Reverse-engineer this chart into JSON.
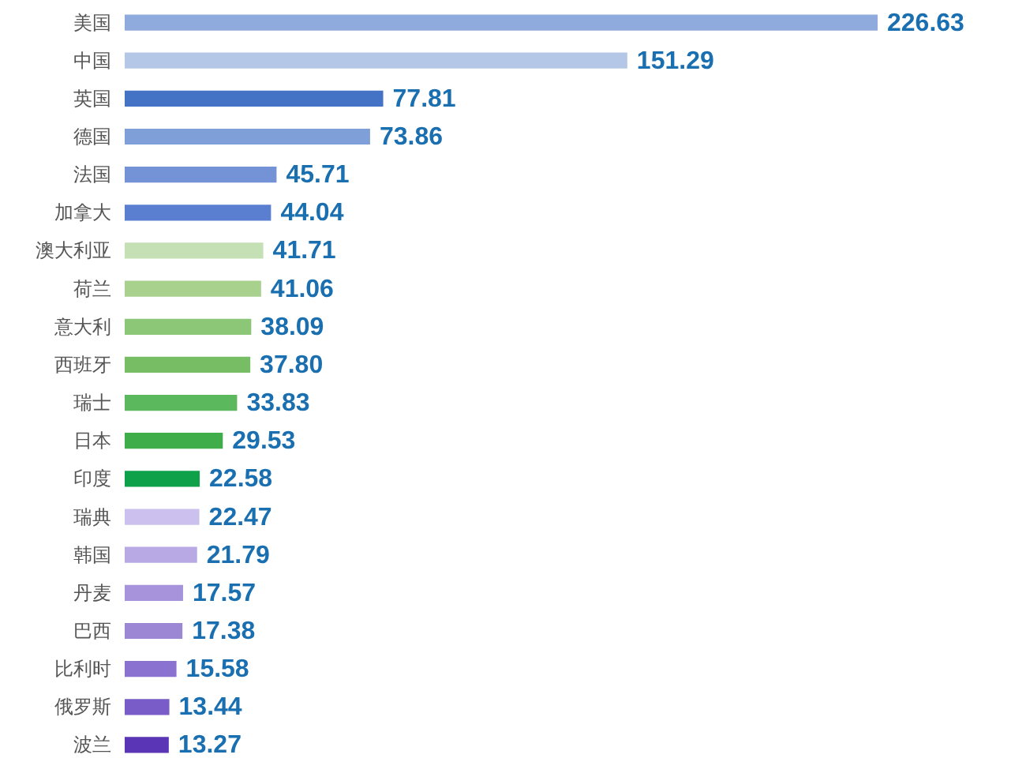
{
  "chart_data": {
    "type": "bar",
    "orientation": "horizontal",
    "tick_labels": "y",
    "categories": [
      "美国",
      "中国",
      "英国",
      "德国",
      "法国",
      "加拿大",
      "澳大利亚",
      "荷兰",
      "意大利",
      "西班牙",
      "瑞士",
      "日本",
      "印度",
      "瑞典",
      "韩国",
      "丹麦",
      "巴西",
      "比利时",
      "俄罗斯",
      "波兰"
    ],
    "values": [
      226.63,
      151.29,
      77.81,
      73.86,
      45.71,
      44.04,
      41.71,
      41.06,
      38.09,
      37.8,
      33.83,
      29.53,
      22.58,
      22.47,
      21.79,
      17.57,
      17.38,
      15.58,
      13.44,
      13.27
    ],
    "value_labels": [
      "226.63",
      "151.29",
      "77.81",
      "73.86",
      "45.71",
      "44.04",
      "41.71",
      "41.06",
      "38.09",
      "37.80",
      "33.83",
      "29.53",
      "22.58",
      "22.47",
      "21.79",
      "17.57",
      "17.38",
      "15.58",
      "13.44",
      "13.27"
    ],
    "colors": [
      "#8faadc",
      "#b4c7e7",
      "#4472c4",
      "#7f9fd9",
      "#7393d6",
      "#5b7fd0",
      "#c5e0b4",
      "#a9d18e",
      "#8cc677",
      "#76bd64",
      "#5cb85c",
      "#3fae4a",
      "#0ea14a",
      "#ccc1ee",
      "#b8a8e3",
      "#a693dc",
      "#9b87d4",
      "#8a73d0",
      "#7a5cc8",
      "#5a35b5"
    ]
  }
}
